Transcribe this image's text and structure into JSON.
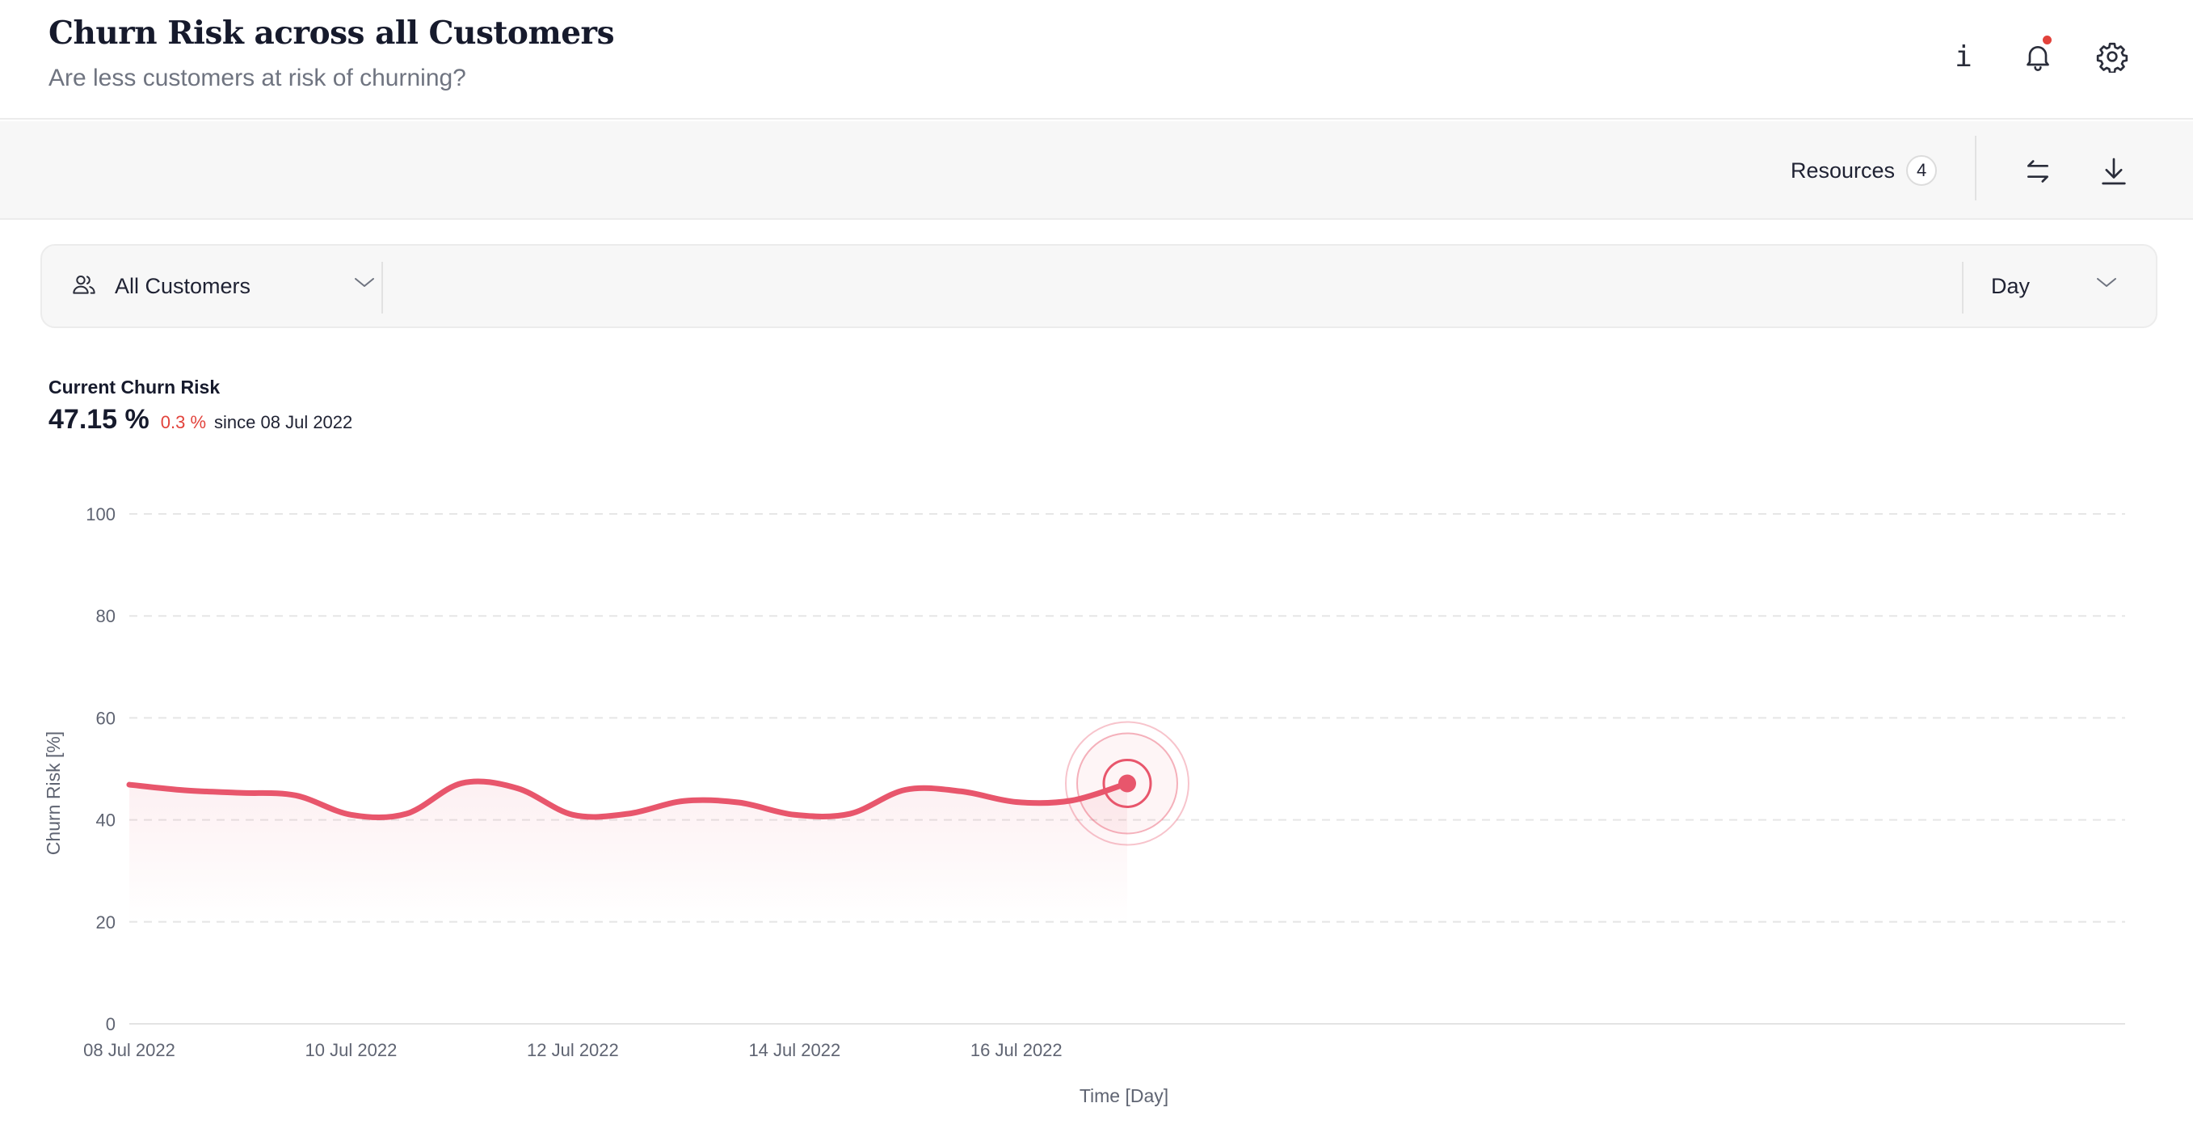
{
  "header": {
    "title": "Churn Risk across all Customers",
    "subtitle": "Are less customers at risk of churning?",
    "icons": [
      "info-icon",
      "bell-icon",
      "gear-icon"
    ],
    "has_notification": true
  },
  "toolbar": {
    "resources_label": "Resources",
    "resources_count": "4",
    "icons": [
      "swap-arrows-icon",
      "download-icon"
    ]
  },
  "filters": {
    "segment_value": "All Customers",
    "period_value": "Day"
  },
  "kpi": {
    "label": "Current Churn Risk",
    "value": "47.15 %",
    "change": "0.3 %",
    "since": "since 08 Jul 2022"
  },
  "colors": {
    "accent": "#e8566c",
    "negative": "#e2423b",
    "text_dark": "#161a2c",
    "grid": "#e6e6e6"
  },
  "chart_data": {
    "type": "line",
    "xlabel": "Time [Day]",
    "ylabel": "Churn Risk [%]",
    "ylim": [
      0,
      100
    ],
    "yticks": [
      0,
      20,
      40,
      60,
      80,
      100
    ],
    "x_tick_labels": [
      "08 Jul 2022",
      "10 Jul 2022",
      "12 Jul 2022",
      "14 Jul 2022",
      "16 Jul 2022"
    ],
    "x_range": [
      "2022-07-08",
      "2022-07-26"
    ],
    "grid": true,
    "area_fill": true,
    "series": [
      {
        "x": [
          "2022-07-08",
          "2022-07-08T12:00",
          "2022-07-09",
          "2022-07-09T12:00",
          "2022-07-10",
          "2022-07-10T12:00",
          "2022-07-11",
          "2022-07-11T12:00",
          "2022-07-12",
          "2022-07-12T12:00",
          "2022-07-13",
          "2022-07-13T12:00",
          "2022-07-14",
          "2022-07-14T12:00",
          "2022-07-15",
          "2022-07-15T12:00",
          "2022-07-16",
          "2022-07-16T12:00",
          "2022-07-17"
        ],
        "values": [
          46.9,
          45.8,
          45.3,
          44.8,
          41.0,
          41.2,
          47.2,
          46.2,
          41.0,
          41.2,
          43.7,
          43.4,
          41.0,
          41.2,
          45.9,
          45.6,
          43.5,
          43.8,
          47.15
        ]
      }
    ],
    "highlight_last_point": true
  }
}
